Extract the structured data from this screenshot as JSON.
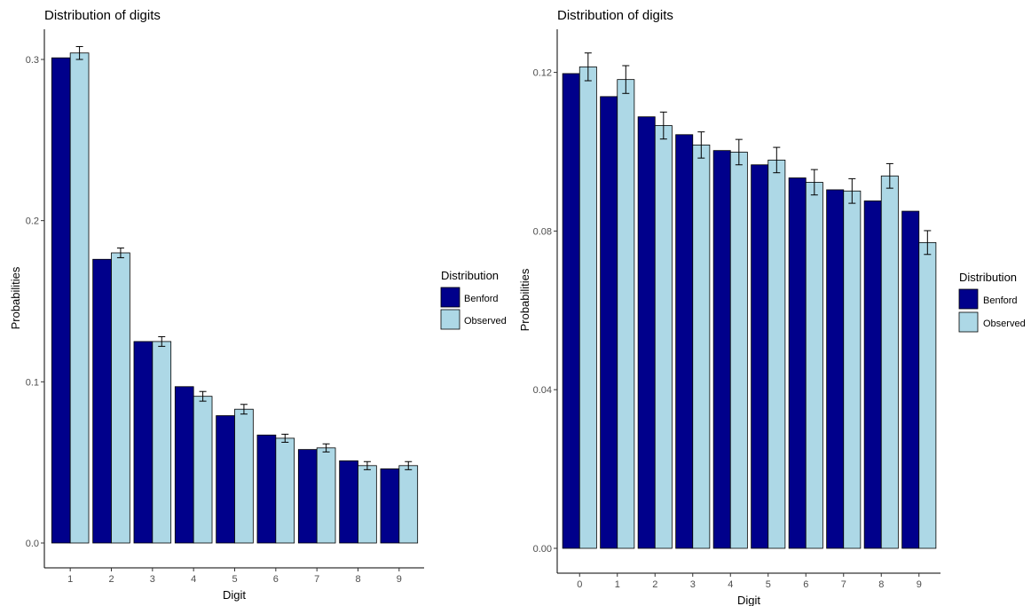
{
  "chart_data": [
    {
      "type": "bar",
      "title": "Distribution of digits",
      "xlabel": "Digit",
      "ylabel": "Probabilities",
      "categories": [
        "1",
        "2",
        "3",
        "4",
        "5",
        "6",
        "7",
        "8",
        "9"
      ],
      "ylim": [
        0,
        0.32
      ],
      "yticks": [
        "0.0",
        "0.1",
        "0.2",
        "0.3"
      ],
      "ytick_values": [
        0,
        0.1,
        0.2,
        0.3
      ],
      "grid": false,
      "legend": {
        "title": "Distribution",
        "position": "right"
      },
      "series": [
        {
          "name": "Benford",
          "color": "#00008B",
          "values": [
            0.301,
            0.176,
            0.125,
            0.097,
            0.079,
            0.067,
            0.058,
            0.051,
            0.046
          ]
        },
        {
          "name": "Observed",
          "color": "#ADD8E6",
          "values": [
            0.304,
            0.18,
            0.125,
            0.091,
            0.083,
            0.065,
            0.059,
            0.048,
            0.048
          ],
          "error": [
            0.004,
            0.003,
            0.003,
            0.003,
            0.003,
            0.0025,
            0.0025,
            0.0025,
            0.0025
          ]
        }
      ]
    },
    {
      "type": "bar",
      "title": "Distribution of digits",
      "xlabel": "Digit",
      "ylabel": "Probabilities",
      "categories": [
        "0",
        "1",
        "2",
        "3",
        "4",
        "5",
        "6",
        "7",
        "8",
        "9"
      ],
      "ylim": [
        0,
        0.1305
      ],
      "yticks": [
        "0.00",
        "0.04",
        "0.08",
        "0.12"
      ],
      "ytick_values": [
        0,
        0.04,
        0.08,
        0.12
      ],
      "grid": false,
      "legend": {
        "title": "Distribution",
        "position": "right"
      },
      "series": [
        {
          "name": "Benford",
          "color": "#00008B",
          "values": [
            0.1197,
            0.1139,
            0.1088,
            0.1043,
            0.1003,
            0.0967,
            0.0934,
            0.0904,
            0.0876,
            0.085
          ]
        },
        {
          "name": "Observed",
          "color": "#ADD8E6",
          "values": [
            0.1214,
            0.1182,
            0.1066,
            0.1017,
            0.0999,
            0.0979,
            0.0923,
            0.0901,
            0.0939,
            0.0771
          ],
          "error": [
            0.0035,
            0.0035,
            0.0034,
            0.0033,
            0.0032,
            0.0032,
            0.0032,
            0.0031,
            0.0031,
            0.003
          ]
        }
      ]
    }
  ]
}
